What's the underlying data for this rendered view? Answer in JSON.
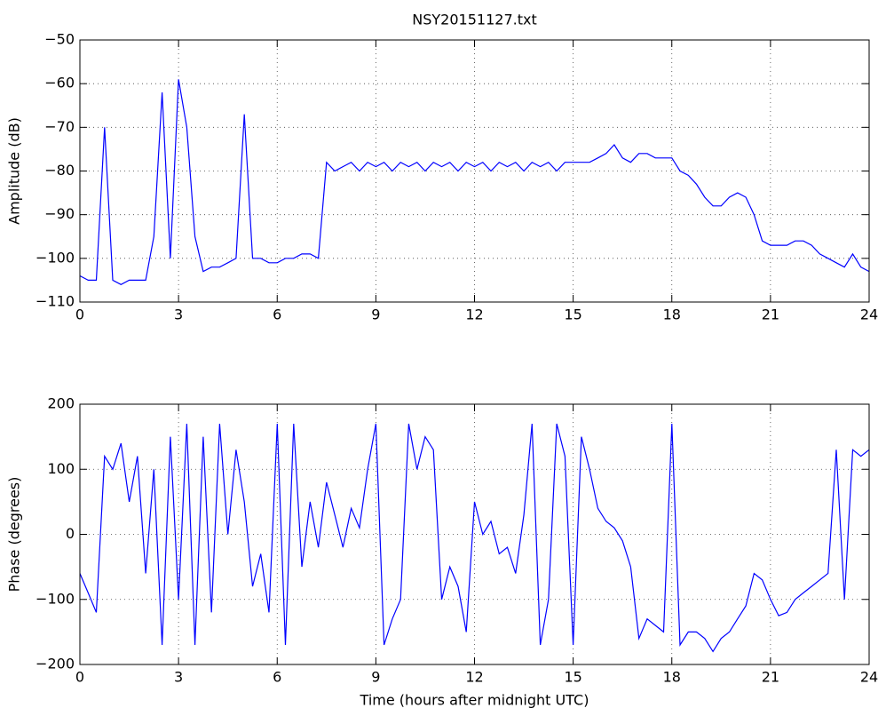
{
  "chart_data": [
    {
      "type": "line",
      "title": "NSY20151127.txt",
      "ylabel": "Amplitude (dB)",
      "color": "#0000ff",
      "grid": true,
      "x": [
        0,
        0.25,
        0.5,
        0.75,
        1,
        1.25,
        1.5,
        1.75,
        2,
        2.25,
        2.5,
        2.75,
        3,
        3.25,
        3.5,
        3.75,
        4,
        4.25,
        4.5,
        4.75,
        5,
        5.25,
        5.5,
        5.75,
        6,
        6.25,
        6.5,
        6.75,
        7,
        7.25,
        7.5,
        7.75,
        8,
        8.25,
        8.5,
        8.75,
        9,
        9.25,
        9.5,
        9.75,
        10,
        10.25,
        10.5,
        10.75,
        11,
        11.25,
        11.5,
        11.75,
        12,
        12.25,
        12.5,
        12.75,
        13,
        13.25,
        13.5,
        13.75,
        14,
        14.25,
        14.5,
        14.75,
        15,
        15.25,
        15.5,
        15.75,
        16,
        16.25,
        16.5,
        16.75,
        17,
        17.25,
        17.5,
        17.75,
        18,
        18.25,
        18.5,
        18.75,
        19,
        19.25,
        19.5,
        19.75,
        20,
        20.25,
        20.5,
        20.75,
        21,
        21.25,
        21.5,
        21.75,
        22,
        22.25,
        22.5,
        22.75,
        23,
        23.25,
        23.5,
        23.75,
        24
      ],
      "values": [
        -104,
        -105,
        -105,
        -70,
        -105,
        -106,
        -105,
        -105,
        -105,
        -95,
        -62,
        -100,
        -59,
        -70,
        -95,
        -103,
        -102,
        -102,
        -101,
        -100,
        -67,
        -100,
        -100,
        -101,
        -101,
        -100,
        -100,
        -99,
        -99,
        -100,
        -78,
        -80,
        -79,
        -78,
        -80,
        -78,
        -79,
        -78,
        -80,
        -78,
        -79,
        -78,
        -80,
        -78,
        -79,
        -78,
        -80,
        -78,
        -79,
        -78,
        -80,
        -78,
        -79,
        -78,
        -80,
        -78,
        -79,
        -78,
        -80,
        -78,
        -78,
        -78,
        -78,
        -77,
        -76,
        -74,
        -77,
        -78,
        -76,
        -76,
        -77,
        -77,
        -77,
        -80,
        -81,
        -83,
        -86,
        -88,
        -88,
        -86,
        -85,
        -86,
        -90,
        -96,
        -97,
        -97,
        -97,
        -96,
        -96,
        -97,
        -99,
        -100,
        -101,
        -102,
        -99,
        -102,
        -103
      ],
      "xlim": [
        0,
        24
      ],
      "xticks": [
        0,
        3,
        6,
        9,
        12,
        15,
        18,
        21,
        24
      ],
      "ylim": [
        -110,
        -50
      ],
      "yticks": [
        {
          "value": -110,
          "label": "−110"
        },
        {
          "value": -100,
          "label": "−100"
        },
        {
          "value": -90,
          "label": "−90"
        },
        {
          "value": -80,
          "label": "−80"
        },
        {
          "value": -70,
          "label": "−70"
        },
        {
          "value": -60,
          "label": "−60"
        },
        {
          "value": -50,
          "label": "−50"
        }
      ]
    },
    {
      "type": "line",
      "ylabel": "Phase (degrees)",
      "xlabel": "Time (hours after midnight UTC)",
      "color": "#0000ff",
      "grid": true,
      "x": [
        0,
        0.25,
        0.5,
        0.75,
        1,
        1.25,
        1.5,
        1.75,
        2,
        2.25,
        2.5,
        2.75,
        3,
        3.25,
        3.5,
        3.75,
        4,
        4.25,
        4.5,
        4.75,
        5,
        5.25,
        5.5,
        5.75,
        6,
        6.25,
        6.5,
        6.75,
        7,
        7.25,
        7.5,
        7.75,
        8,
        8.25,
        8.5,
        8.75,
        9,
        9.25,
        9.5,
        9.75,
        10,
        10.25,
        10.5,
        10.75,
        11,
        11.25,
        11.5,
        11.75,
        12,
        12.25,
        12.5,
        12.75,
        13,
        13.25,
        13.5,
        13.75,
        14,
        14.25,
        14.5,
        14.75,
        15,
        15.25,
        15.5,
        15.75,
        16,
        16.25,
        16.5,
        16.75,
        17,
        17.25,
        17.5,
        17.75,
        18,
        18.25,
        18.5,
        18.75,
        19,
        19.25,
        19.5,
        19.75,
        20,
        20.25,
        20.5,
        20.75,
        21,
        21.25,
        21.5,
        21.75,
        22,
        22.25,
        22.5,
        22.75,
        23,
        23.25,
        23.5,
        23.75,
        24
      ],
      "values": [
        -60,
        -90,
        -120,
        120,
        100,
        140,
        50,
        120,
        -60,
        100,
        -170,
        150,
        -100,
        170,
        -170,
        150,
        -120,
        170,
        0,
        130,
        50,
        -80,
        -30,
        -120,
        170,
        -170,
        170,
        -50,
        50,
        -20,
        80,
        30,
        -20,
        40,
        10,
        100,
        170,
        -170,
        -130,
        -100,
        170,
        100,
        150,
        130,
        -100,
        -50,
        -80,
        -150,
        50,
        0,
        20,
        -30,
        -20,
        -60,
        30,
        170,
        -170,
        -100,
        170,
        120,
        -170,
        150,
        100,
        40,
        20,
        10,
        -10,
        -50,
        -160,
        -130,
        -140,
        -150,
        170,
        -170,
        -150,
        -150,
        -160,
        -180,
        -160,
        -150,
        -130,
        -110,
        -60,
        -70,
        -100,
        -125,
        -120,
        -100,
        -90,
        -80,
        -70,
        -60,
        130,
        -100,
        130,
        120,
        130
      ],
      "xlim": [
        0,
        24
      ],
      "xticks": [
        0,
        3,
        6,
        9,
        12,
        15,
        18,
        21,
        24
      ],
      "ylim": [
        -200,
        200
      ],
      "yticks": [
        {
          "value": -200,
          "label": "−200"
        },
        {
          "value": -100,
          "label": "−100"
        },
        0,
        100,
        200
      ]
    }
  ]
}
